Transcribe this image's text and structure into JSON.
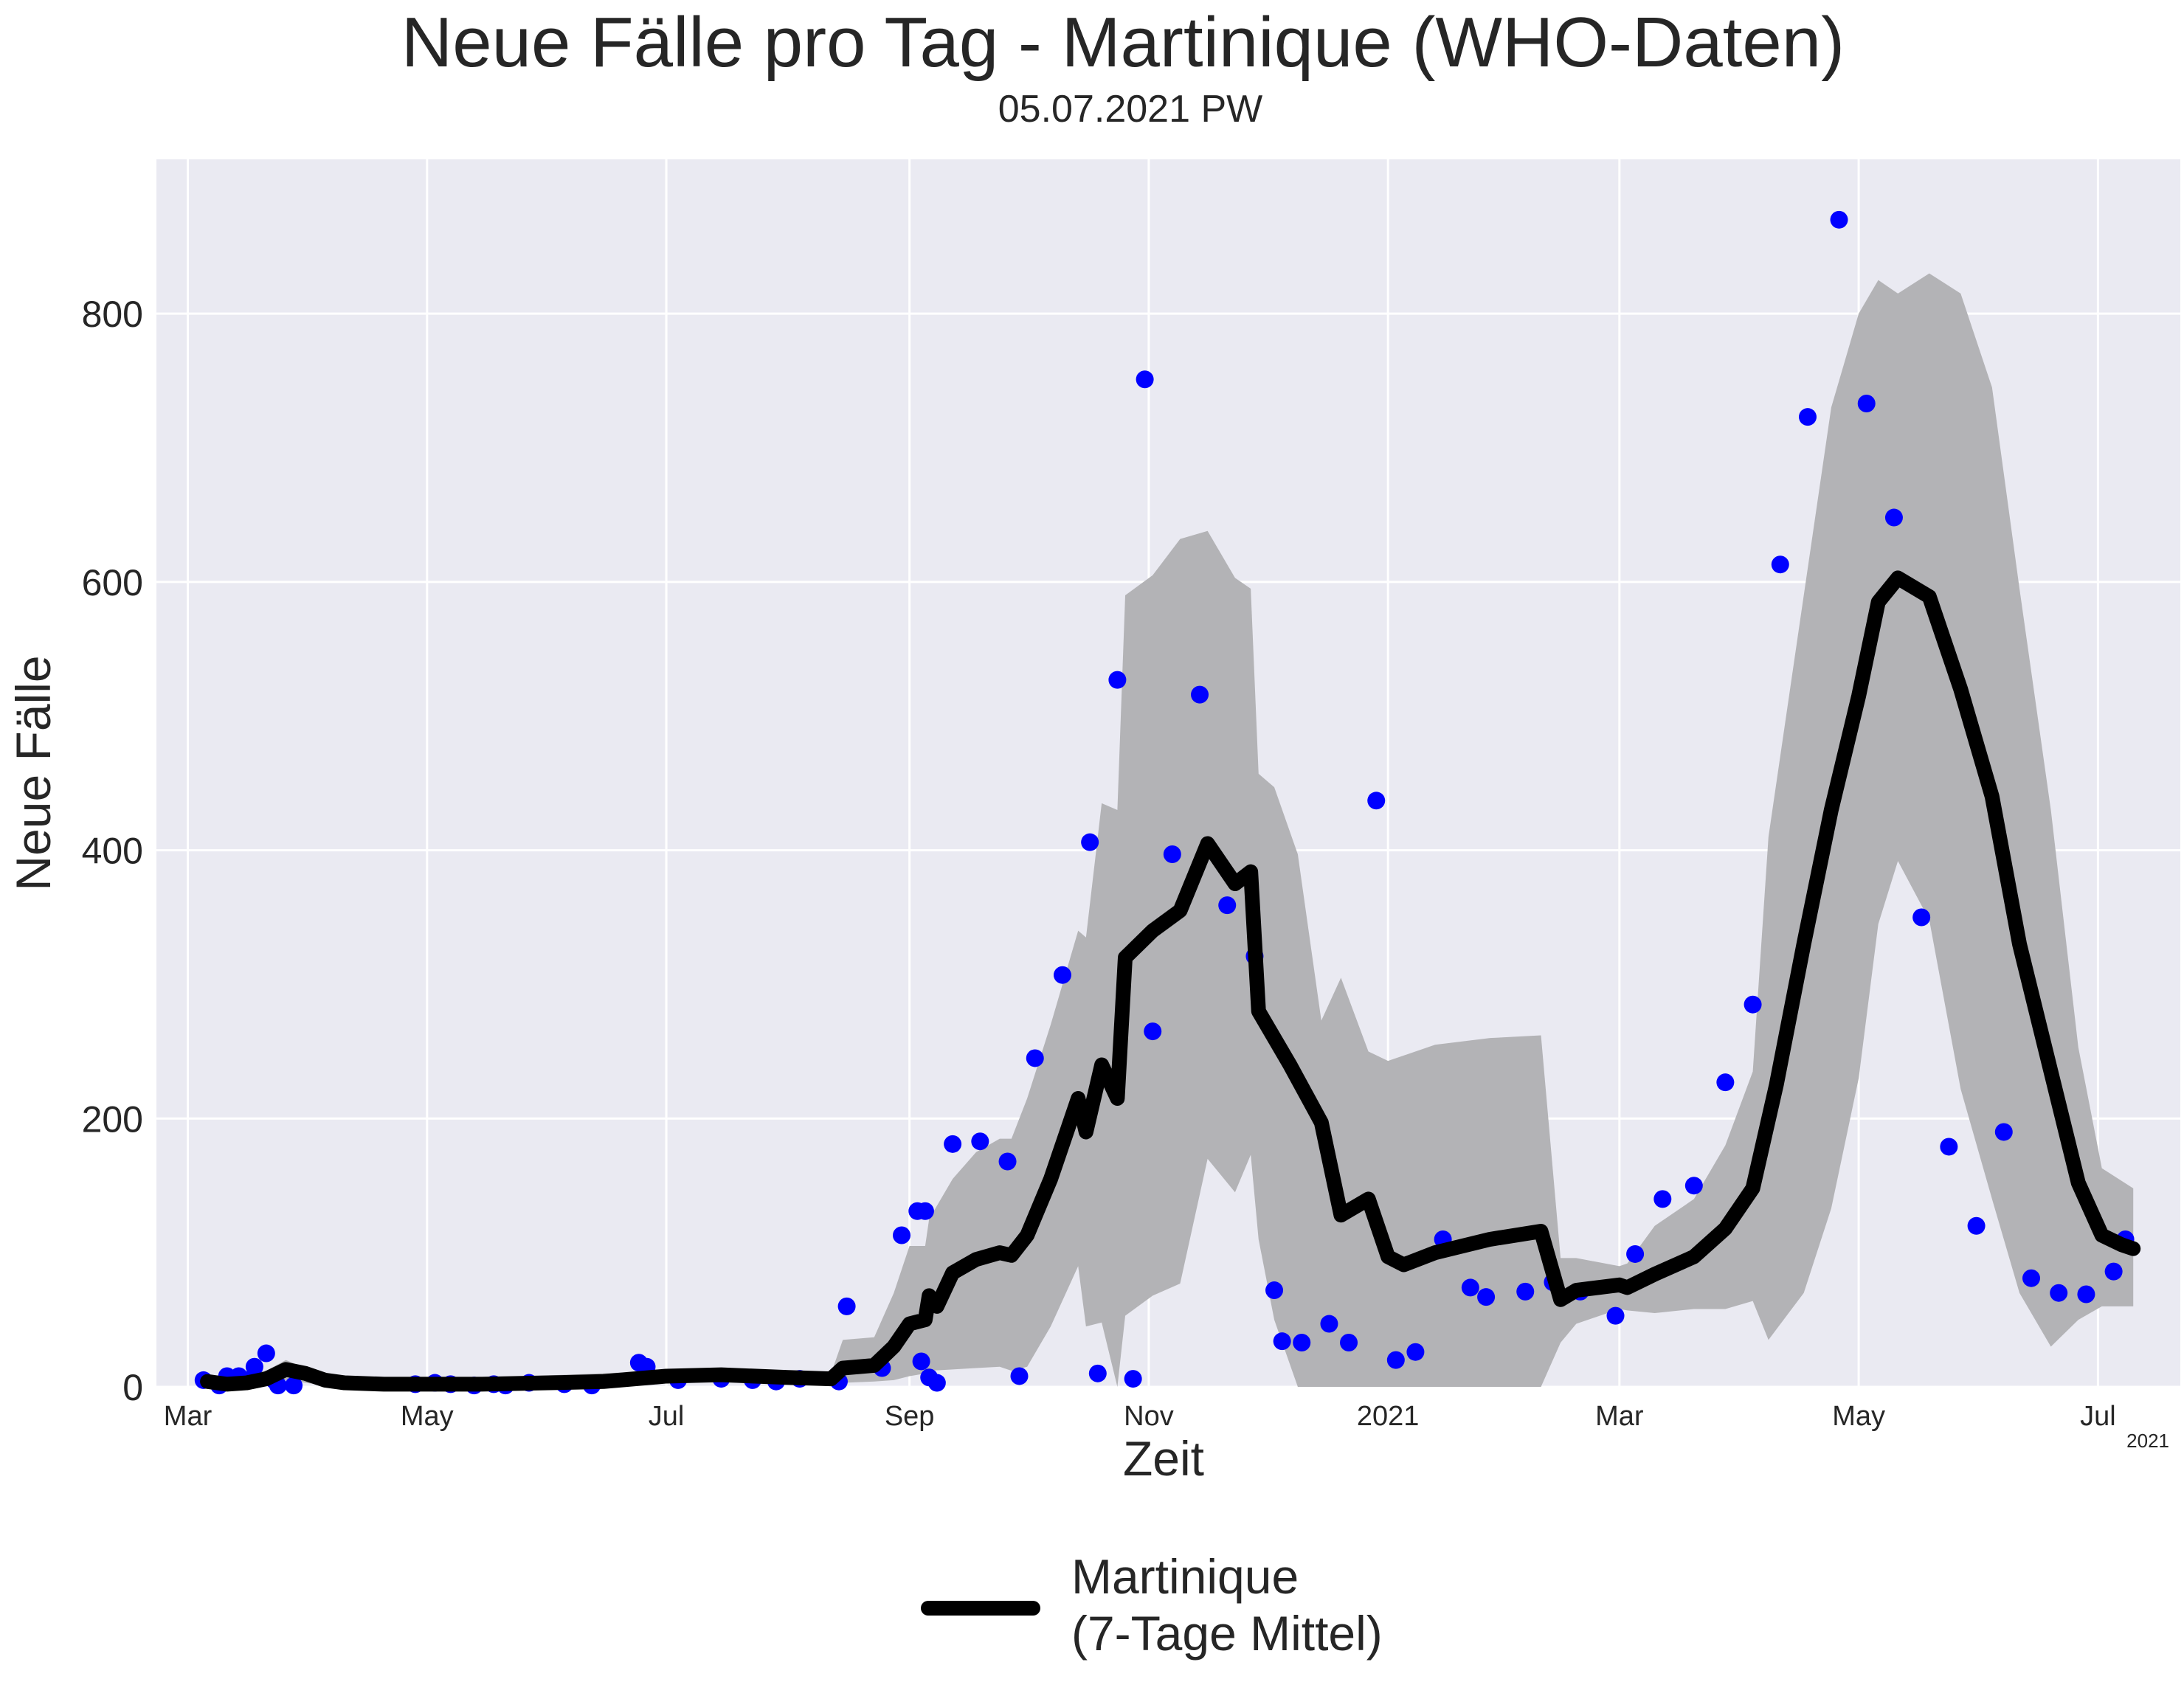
{
  "title": "Neue Fälle pro Tag - Martinique (WHO-Daten)",
  "subtitle": "05.07.2021 PW",
  "xlabel": "Zeit",
  "ylabel": "Neue Fälle",
  "x_offset_label": "2021",
  "legend": {
    "label_line1": "Martinique",
    "label_line2": "(7-Tage Mittel)"
  },
  "colors": {
    "plot_bg": "#EAEAF2",
    "grid": "#ffffff",
    "band": "#b3b3b6",
    "line": "#000000",
    "points": "#0000FF"
  },
  "chart_data": {
    "type": "line",
    "xaxis_type": "date",
    "xlim": [
      "2020-02-22",
      "2021-07-22"
    ],
    "ylim": [
      0,
      915
    ],
    "yticks": [
      0,
      200,
      400,
      600,
      800
    ],
    "xticks": [
      {
        "date": "2020-03-01",
        "label": "Mar"
      },
      {
        "date": "2020-05-01",
        "label": "May"
      },
      {
        "date": "2020-07-01",
        "label": "Jul"
      },
      {
        "date": "2020-09-01",
        "label": "Sep"
      },
      {
        "date": "2020-11-01",
        "label": "Nov"
      },
      {
        "date": "2021-01-01",
        "label": "2021"
      },
      {
        "date": "2021-03-01",
        "label": "Mar"
      },
      {
        "date": "2021-05-01",
        "label": "May"
      },
      {
        "date": "2021-07-01",
        "label": "Jul"
      }
    ],
    "grid": true,
    "legend_position": "bottom-center",
    "series": [
      {
        "name": "Martinique (7-Tage Mittel)",
        "kind": "line",
        "points": [
          [
            "2020-03-06",
            4
          ],
          [
            "2020-03-11",
            2
          ],
          [
            "2020-03-16",
            3
          ],
          [
            "2020-03-21",
            6
          ],
          [
            "2020-03-26",
            13
          ],
          [
            "2020-03-31",
            10
          ],
          [
            "2020-04-05",
            5
          ],
          [
            "2020-04-10",
            3
          ],
          [
            "2020-04-20",
            2
          ],
          [
            "2020-05-01",
            2
          ],
          [
            "2020-05-15",
            2
          ],
          [
            "2020-06-01",
            3
          ],
          [
            "2020-06-15",
            4
          ],
          [
            "2020-07-01",
            8
          ],
          [
            "2020-07-15",
            9
          ],
          [
            "2020-08-01",
            7
          ],
          [
            "2020-08-12",
            6
          ],
          [
            "2020-08-15",
            14
          ],
          [
            "2020-08-23",
            16
          ],
          [
            "2020-08-28",
            30
          ],
          [
            "2020-09-01",
            47
          ],
          [
            "2020-09-05",
            50
          ],
          [
            "2020-09-06",
            68
          ],
          [
            "2020-09-08",
            60
          ],
          [
            "2020-09-12",
            85
          ],
          [
            "2020-09-18",
            95
          ],
          [
            "2020-09-24",
            100
          ],
          [
            "2020-09-27",
            98
          ],
          [
            "2020-10-01",
            113
          ],
          [
            "2020-10-07",
            155
          ],
          [
            "2020-10-14",
            215
          ],
          [
            "2020-10-16",
            190
          ],
          [
            "2020-10-20",
            240
          ],
          [
            "2020-10-24",
            215
          ],
          [
            "2020-10-26",
            320
          ],
          [
            "2020-11-02",
            340
          ],
          [
            "2020-11-09",
            355
          ],
          [
            "2020-11-16",
            405
          ],
          [
            "2020-11-23",
            375
          ],
          [
            "2020-11-27",
            384
          ],
          [
            "2020-11-29",
            280
          ],
          [
            "2020-12-07",
            240
          ],
          [
            "2020-12-15",
            197
          ],
          [
            "2020-12-20",
            128
          ],
          [
            "2020-12-27",
            140
          ],
          [
            "2021-01-01",
            97
          ],
          [
            "2021-01-05",
            91
          ],
          [
            "2021-01-13",
            100
          ],
          [
            "2021-01-27",
            110
          ],
          [
            "2021-02-09",
            116
          ],
          [
            "2021-02-14",
            65
          ],
          [
            "2021-02-18",
            72
          ],
          [
            "2021-03-01",
            76
          ],
          [
            "2021-03-03",
            74
          ],
          [
            "2021-03-10",
            84
          ],
          [
            "2021-03-20",
            97
          ],
          [
            "2021-03-28",
            118
          ],
          [
            "2021-04-04",
            148
          ],
          [
            "2021-04-10",
            225
          ],
          [
            "2021-04-17",
            330
          ],
          [
            "2021-04-24",
            430
          ],
          [
            "2021-05-01",
            515
          ],
          [
            "2021-05-06",
            585
          ],
          [
            "2021-05-11",
            603
          ],
          [
            "2021-05-19",
            589
          ],
          [
            "2021-05-27",
            520
          ],
          [
            "2021-06-04",
            440
          ],
          [
            "2021-06-11",
            330
          ],
          [
            "2021-06-19",
            235
          ],
          [
            "2021-06-26",
            152
          ],
          [
            "2021-07-02",
            113
          ],
          [
            "2021-07-07",
            106
          ],
          [
            "2021-07-10",
            103
          ]
        ]
      },
      {
        "name": "",
        "kind": "band",
        "points": [
          [
            "2020-03-06",
            6,
            2
          ],
          [
            "2020-03-21",
            12,
            1
          ],
          [
            "2020-03-26",
            20,
            5
          ],
          [
            "2020-04-05",
            8,
            1
          ],
          [
            "2020-05-01",
            5,
            0
          ],
          [
            "2020-07-01",
            12,
            4
          ],
          [
            "2020-08-12",
            10,
            2
          ],
          [
            "2020-08-15",
            35,
            3
          ],
          [
            "2020-08-23",
            37,
            4
          ],
          [
            "2020-08-28",
            70,
            5
          ],
          [
            "2020-09-01",
            105,
            8
          ],
          [
            "2020-09-05",
            105,
            10
          ],
          [
            "2020-09-06",
            125,
            12
          ],
          [
            "2020-09-12",
            155,
            13
          ],
          [
            "2020-09-18",
            175,
            14
          ],
          [
            "2020-09-24",
            185,
            15
          ],
          [
            "2020-09-27",
            185,
            12
          ],
          [
            "2020-10-01",
            215,
            15
          ],
          [
            "2020-10-07",
            270,
            45
          ],
          [
            "2020-10-14",
            340,
            90
          ],
          [
            "2020-10-16",
            335,
            45
          ],
          [
            "2020-10-20",
            435,
            48
          ],
          [
            "2020-10-24",
            430,
            0
          ],
          [
            "2020-10-26",
            590,
            53
          ],
          [
            "2020-11-02",
            605,
            68
          ],
          [
            "2020-11-09",
            632,
            77
          ],
          [
            "2020-11-16",
            638,
            170
          ],
          [
            "2020-11-23",
            603,
            145
          ],
          [
            "2020-11-27",
            595,
            173
          ],
          [
            "2020-11-29",
            457,
            110
          ],
          [
            "2020-12-03",
            447,
            50
          ],
          [
            "2020-12-09",
            397,
            0
          ],
          [
            "2020-12-15",
            273,
            0
          ],
          [
            "2020-12-20",
            305,
            0
          ],
          [
            "2020-12-27",
            250,
            0
          ],
          [
            "2021-01-01",
            243,
            0
          ],
          [
            "2021-01-13",
            255,
            0
          ],
          [
            "2021-01-27",
            260,
            0
          ],
          [
            "2021-02-09",
            262,
            0
          ],
          [
            "2021-02-14",
            96,
            33
          ],
          [
            "2021-02-18",
            96,
            47
          ],
          [
            "2021-03-01",
            90,
            58
          ],
          [
            "2021-03-03",
            92,
            57
          ],
          [
            "2021-03-10",
            120,
            55
          ],
          [
            "2021-03-20",
            140,
            58
          ],
          [
            "2021-03-28",
            180,
            58
          ],
          [
            "2021-04-04",
            235,
            64
          ],
          [
            "2021-04-08",
            410,
            35
          ],
          [
            "2021-04-17",
            590,
            70
          ],
          [
            "2021-04-24",
            730,
            133
          ],
          [
            "2021-05-01",
            800,
            230
          ],
          [
            "2021-05-06",
            825,
            345
          ],
          [
            "2021-05-11",
            815,
            392
          ],
          [
            "2021-05-19",
            830,
            348
          ],
          [
            "2021-05-27",
            815,
            222
          ],
          [
            "2021-06-04",
            745,
            140
          ],
          [
            "2021-06-11",
            595,
            70
          ],
          [
            "2021-06-19",
            430,
            30
          ],
          [
            "2021-06-26",
            253,
            50
          ],
          [
            "2021-07-02",
            163,
            60
          ],
          [
            "2021-07-10",
            148,
            60
          ]
        ]
      },
      {
        "name": "",
        "kind": "scatter",
        "points": [
          [
            "2020-03-05",
            5
          ],
          [
            "2020-03-09",
            1
          ],
          [
            "2020-03-11",
            8
          ],
          [
            "2020-03-14",
            8
          ],
          [
            "2020-03-16",
            5
          ],
          [
            "2020-03-18",
            15
          ],
          [
            "2020-03-21",
            25
          ],
          [
            "2020-03-23",
            5
          ],
          [
            "2020-03-24",
            1
          ],
          [
            "2020-03-28",
            1
          ],
          [
            "2020-04-28",
            2
          ],
          [
            "2020-05-03",
            3
          ],
          [
            "2020-05-07",
            2
          ],
          [
            "2020-05-13",
            1
          ],
          [
            "2020-05-18",
            2
          ],
          [
            "2020-05-21",
            1
          ],
          [
            "2020-05-27",
            3
          ],
          [
            "2020-06-05",
            2
          ],
          [
            "2020-06-12",
            1
          ],
          [
            "2020-06-24",
            18
          ],
          [
            "2020-06-26",
            15
          ],
          [
            "2020-07-04",
            5
          ],
          [
            "2020-07-15",
            6
          ],
          [
            "2020-07-23",
            5
          ],
          [
            "2020-07-29",
            4
          ],
          [
            "2020-08-04",
            6
          ],
          [
            "2020-08-14",
            4
          ],
          [
            "2020-08-16",
            60
          ],
          [
            "2020-08-25",
            14
          ],
          [
            "2020-08-30",
            113
          ],
          [
            "2020-09-03",
            131
          ],
          [
            "2020-09-04",
            19
          ],
          [
            "2020-09-05",
            131
          ],
          [
            "2020-09-06",
            7
          ],
          [
            "2020-09-08",
            3
          ],
          [
            "2020-09-12",
            181
          ],
          [
            "2020-09-19",
            183
          ],
          [
            "2020-09-26",
            168
          ],
          [
            "2020-09-29",
            8
          ],
          [
            "2020-10-03",
            245
          ],
          [
            "2020-10-10",
            307
          ],
          [
            "2020-10-17",
            406
          ],
          [
            "2020-10-19",
            10
          ],
          [
            "2020-10-24",
            527
          ],
          [
            "2020-10-28",
            6
          ],
          [
            "2020-10-31",
            751
          ],
          [
            "2020-11-02",
            265
          ],
          [
            "2020-11-07",
            397
          ],
          [
            "2020-11-14",
            516
          ],
          [
            "2020-11-21",
            359
          ],
          [
            "2020-11-28",
            321
          ],
          [
            "2020-12-03",
            72
          ],
          [
            "2020-12-05",
            34
          ],
          [
            "2020-12-10",
            33
          ],
          [
            "2020-12-17",
            47
          ],
          [
            "2020-12-22",
            33
          ],
          [
            "2020-12-29",
            437
          ],
          [
            "2021-01-03",
            20
          ],
          [
            "2021-01-08",
            26
          ],
          [
            "2021-01-15",
            110
          ],
          [
            "2021-01-22",
            74
          ],
          [
            "2021-01-26",
            67
          ],
          [
            "2021-02-05",
            71
          ],
          [
            "2021-02-12",
            78
          ],
          [
            "2021-02-19",
            71
          ],
          [
            "2021-02-28",
            53
          ],
          [
            "2021-03-05",
            99
          ],
          [
            "2021-03-12",
            140
          ],
          [
            "2021-03-20",
            150
          ],
          [
            "2021-03-28",
            227
          ],
          [
            "2021-04-04",
            285
          ],
          [
            "2021-04-11",
            613
          ],
          [
            "2021-04-18",
            723
          ],
          [
            "2021-04-26",
            870
          ],
          [
            "2021-05-03",
            733
          ],
          [
            "2021-05-10",
            648
          ],
          [
            "2021-05-17",
            350
          ],
          [
            "2021-05-24",
            179
          ],
          [
            "2021-05-31",
            120
          ],
          [
            "2021-06-07",
            190
          ],
          [
            "2021-06-14",
            81
          ],
          [
            "2021-06-21",
            70
          ],
          [
            "2021-06-28",
            69
          ],
          [
            "2021-07-05",
            86
          ],
          [
            "2021-07-08",
            110
          ]
        ]
      }
    ]
  }
}
